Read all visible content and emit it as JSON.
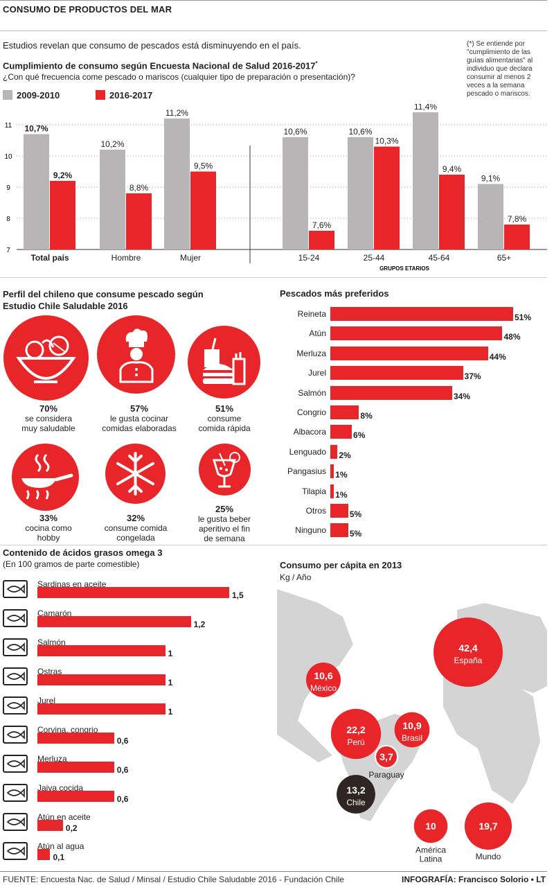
{
  "header": {
    "title": "CONSUMO DE PRODUCTOS DEL MAR"
  },
  "intro": {
    "text": "Estudios revelan que consumo de pescados está disminuyendo en el país."
  },
  "footnote": {
    "text": "(*) Se entiende por \"cumplimiento de las guías alimentarias\" al individuo que declara consumir al menos 2 veces a la semana pescado o mariscos."
  },
  "chart1": {
    "title": "Cumplimiento de consumo según Encuesta Nacional de Salud 2016-2017",
    "title_mark": "*",
    "question": "¿Con qué frecuencia come pescado o mariscos (cualquier tipo de preparación o presentación)?",
    "group_label": "GRUPOS ETARIOS"
  },
  "chart_data": [
    {
      "type": "bar",
      "categories": [
        "Total país",
        "Hombre",
        "Mujer",
        "15-24",
        "25-44",
        "45-64",
        "65+"
      ],
      "series": [
        {
          "name": "2009-2010",
          "values": [
            10.7,
            10.2,
            11.2,
            10.6,
            10.6,
            11.4,
            9.1
          ],
          "labels": [
            "10,7%",
            "10,2%",
            "11,2%",
            "10,6%",
            "10,6%",
            "11,4%",
            "9,1%"
          ],
          "color": "#b7b5b5"
        },
        {
          "name": "2016-2017",
          "values": [
            9.2,
            8.8,
            9.5,
            7.6,
            10.3,
            9.4,
            7.8
          ],
          "labels": [
            "9,2%",
            "8,8%",
            "9,5%",
            "7,6%",
            "10,3%",
            "9,4%",
            "7,8%"
          ],
          "color": "#e8262a"
        }
      ],
      "yticks": [
        "11",
        "10",
        "9",
        "8",
        "7"
      ],
      "ylim": [
        7,
        11
      ],
      "grid": true
    },
    {
      "type": "bar",
      "title": "Pescados más preferidos",
      "categories": [
        "Reineta",
        "Atún",
        "Merluza",
        "Jurel",
        "Salmón",
        "Congrio",
        "Albacora",
        "Lenguado",
        "Pangasius",
        "Tilapia",
        "Otros",
        "Ninguno"
      ],
      "values": [
        51,
        48,
        44,
        37,
        34,
        8,
        6,
        2,
        1,
        1,
        5,
        5
      ],
      "labels": [
        "51%",
        "48%",
        "44%",
        "37%",
        "34%",
        "8%",
        "6%",
        "2%",
        "1%",
        "1%",
        "5%",
        "5%"
      ],
      "orientation": "horizontal"
    },
    {
      "type": "bar",
      "title": "Contenido de ácidos grasos omega 3",
      "subtitle": "(En 100 gramos de parte comestible)",
      "categories": [
        "Sardinas en aceite",
        "Camarón",
        "Salmón",
        "Ostras",
        "Jurel",
        "Corvina, congrio",
        "Merluza",
        "Jaiva cocida",
        "Atún en aceite",
        "Atún al agua"
      ],
      "values": [
        1.5,
        1.2,
        1,
        1,
        1,
        0.6,
        0.6,
        0.6,
        0.2,
        0.1
      ],
      "labels": [
        "1,5",
        "1,2",
        "1",
        "1",
        "1",
        "0,6",
        "0,6",
        "0,6",
        "0,2",
        "0,1"
      ],
      "icons": [
        "sardine-can-icon",
        "shrimp-icon",
        "fish-icon",
        "oyster-icon",
        "fish-icon",
        "fish-icon",
        "fish-icon",
        "crab-icon",
        "tuna-can-icon",
        "tuna-can-icon"
      ],
      "orientation": "horizontal"
    },
    {
      "type": "scatter",
      "title": "Consumo per cápita en 2013",
      "unit": "Kg / Año",
      "points": [
        {
          "name": "España",
          "value": 42.4,
          "label": "42,4"
        },
        {
          "name": "México",
          "value": 10.6,
          "label": "10,6"
        },
        {
          "name": "Perú",
          "value": 22.2,
          "label": "22,2"
        },
        {
          "name": "Brasil",
          "value": 10.9,
          "label": "10,9"
        },
        {
          "name": "Paraguay",
          "value": 3.7,
          "label": "3,7"
        },
        {
          "name": "Chile",
          "value": 13.2,
          "label": "13,2"
        },
        {
          "name": "América Latina",
          "value": 10,
          "label": "10"
        },
        {
          "name": "Mundo",
          "value": 19.7,
          "label": "19,7"
        }
      ]
    }
  ],
  "profile": {
    "title1": "Perfil del chileno que consume pescado según",
    "title2": "Estudio Chile Saludable 2016",
    "items": [
      {
        "pct": "70%",
        "text1": "se considera",
        "text2": "muy saludable",
        "text3": "",
        "icon": "salad-bowl-icon"
      },
      {
        "pct": "57%",
        "text1": "le gusta cocinar",
        "text2": "comidas elaboradas",
        "text3": "",
        "icon": "chef-icon"
      },
      {
        "pct": "51%",
        "text1": "consume",
        "text2": "comida rápida",
        "text3": "",
        "icon": "fast-food-icon"
      },
      {
        "pct": "33%",
        "text1": "cocina como",
        "text2": "hobby",
        "text3": "",
        "icon": "frying-pan-icon"
      },
      {
        "pct": "32%",
        "text1": "consume comida",
        "text2": "congelada",
        "text3": "",
        "icon": "snowflake-icon"
      },
      {
        "pct": "25%",
        "text1": "le gusta beber",
        "text2": "aperitivo el fin",
        "text3": "de semana",
        "icon": "cocktail-icon"
      }
    ]
  },
  "footer": {
    "source": "FUENTE: Encuesta Nac. de Salud / Minsal / Estudio Chile Saludable 2016 - Fundación Chile",
    "credit": "INFOGRAFÍA: Francisco Solorio • LT"
  }
}
